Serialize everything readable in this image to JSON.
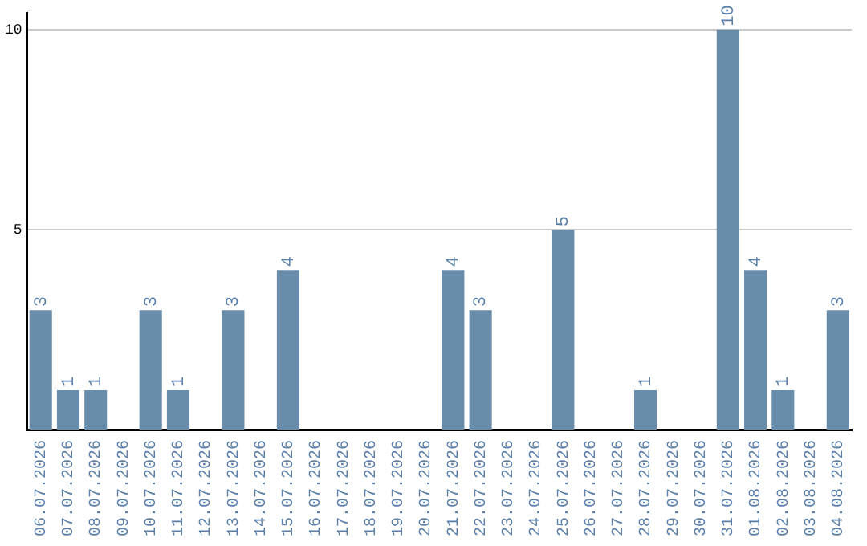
{
  "chart_data": {
    "type": "bar",
    "categories": [
      "06.07.2026",
      "07.07.2026",
      "08.07.2026",
      "09.07.2026",
      "10.07.2026",
      "11.07.2026",
      "12.07.2026",
      "13.07.2026",
      "14.07.2026",
      "15.07.2026",
      "16.07.2026",
      "17.07.2026",
      "18.07.2026",
      "19.07.2026",
      "20.07.2026",
      "21.07.2026",
      "22.07.2026",
      "23.07.2026",
      "24.07.2026",
      "25.07.2026",
      "26.07.2026",
      "27.07.2026",
      "28.07.2026",
      "29.07.2026",
      "30.07.2026",
      "31.07.2026",
      "01.08.2026",
      "02.08.2026",
      "03.08.2026",
      "04.08.2026"
    ],
    "values": [
      3,
      1,
      1,
      0,
      3,
      1,
      0,
      3,
      0,
      4,
      0,
      0,
      0,
      0,
      0,
      4,
      3,
      0,
      0,
      5,
      0,
      0,
      1,
      0,
      0,
      10,
      4,
      1,
      0,
      3
    ],
    "value_labels": [
      "3",
      "1",
      "1",
      null,
      "3",
      "1",
      null,
      "3",
      null,
      "4",
      null,
      null,
      null,
      null,
      null,
      "4",
      "3",
      null,
      null,
      "5",
      null,
      null,
      "1",
      null,
      null,
      "10",
      "4",
      "1",
      null,
      "3"
    ],
    "color": "#6a8cab",
    "ylim": [
      0,
      10.4
    ],
    "yticks": [
      {
        "value": 0,
        "label": null
      },
      5,
      10
    ],
    "grid": "y",
    "legend": false
  }
}
